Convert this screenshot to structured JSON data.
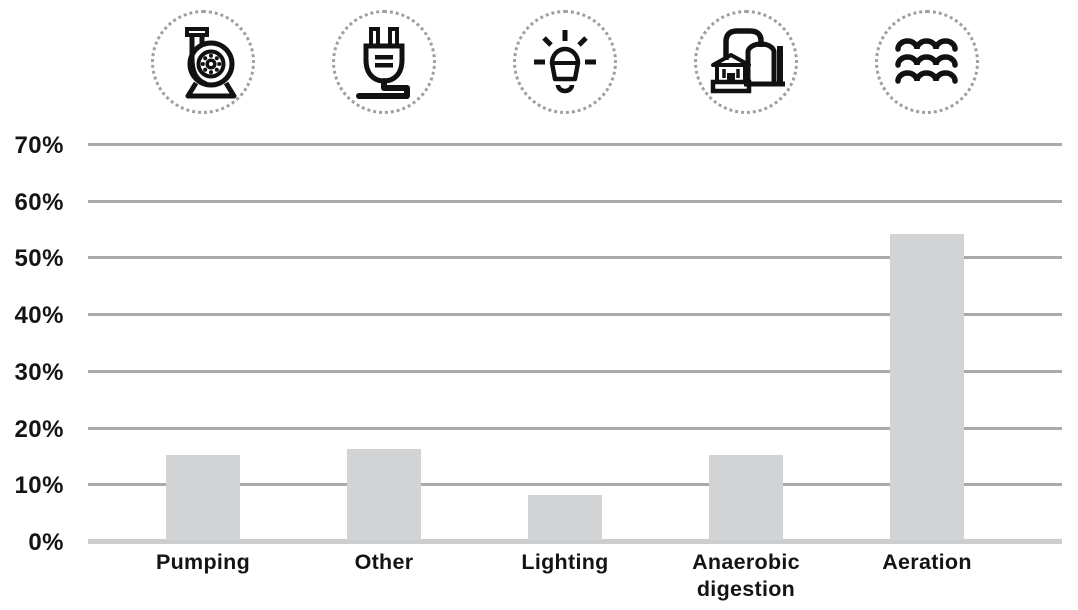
{
  "chart_data": {
    "type": "bar",
    "title": "",
    "xlabel": "",
    "ylabel": "",
    "categories": [
      "Pumping",
      "Other",
      "Lighting",
      "Anaerobic digestion",
      "Aeration"
    ],
    "values": [
      15,
      16,
      8,
      15,
      54
    ],
    "unit": "%",
    "ylim": [
      0,
      70
    ],
    "yticks": [
      "70%",
      "60%",
      "50%",
      "40%",
      "30%",
      "20%",
      "10%",
      "0%"
    ],
    "grid": true,
    "legend": false,
    "bar_color": "#d2d3d4",
    "icons": [
      {
        "name": "pump-icon",
        "category": "Pumping"
      },
      {
        "name": "plug-icon",
        "category": "Other"
      },
      {
        "name": "lightbulb-icon",
        "category": "Lighting"
      },
      {
        "name": "digester-icon",
        "category": "Anaerobic digestion"
      },
      {
        "name": "waves-icon",
        "category": "Aeration"
      }
    ]
  },
  "colors": {
    "background": "#ffffff",
    "gridline": "#a8aaad",
    "baseline": "#cccdcf",
    "bar": "#d2d3d4",
    "text": "#141414",
    "icon_stroke": "#111111",
    "icon_circle_dots": "#9f9f9f"
  }
}
